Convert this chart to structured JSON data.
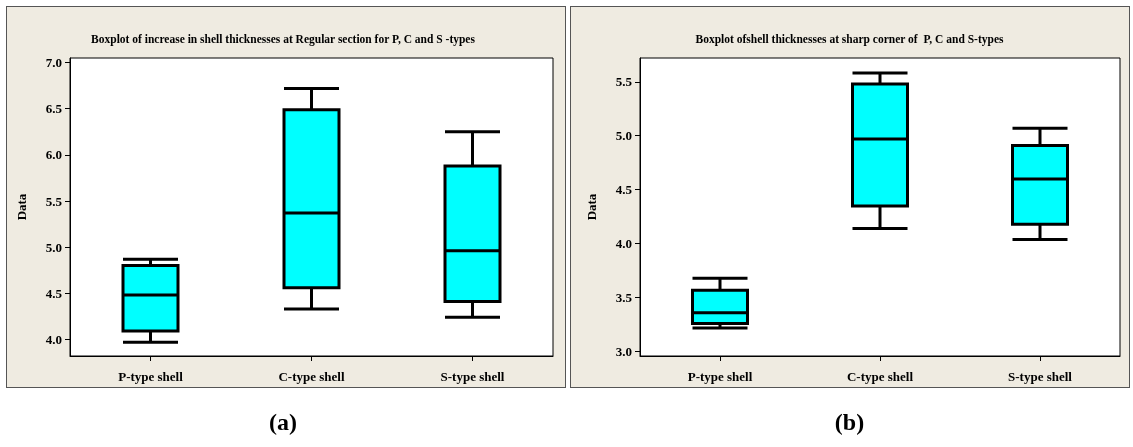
{
  "chart_data": [
    {
      "type": "box",
      "title": "Boxplot of increase in shell thicknesses at Regular section for P, C and S -types",
      "ylabel": "Data",
      "categories": [
        "P-type shell",
        "C-type shell",
        "S-type shell"
      ],
      "ylim": [
        3.82,
        7.05
      ],
      "yticks": [
        {
          "value": 4,
          "label": "4.0"
        },
        4.5,
        {
          "value": 5,
          "label": "5.0"
        },
        5.5,
        {
          "value": 6,
          "label": "6.0"
        },
        6.5,
        {
          "value": 7,
          "label": "7.0"
        }
      ],
      "annotations": [
        "(a)"
      ],
      "series": [
        {
          "color": "#00ffff",
          "boxes": [
            {
              "low": 3.97,
              "q1": 4.09,
              "median": 4.48,
              "q3": 4.8,
              "high": 4.87
            },
            {
              "low": 4.33,
              "q1": 4.56,
              "median": 5.37,
              "q3": 6.49,
              "high": 6.72
            },
            {
              "low": 4.24,
              "q1": 4.41,
              "median": 4.96,
              "q3": 5.88,
              "high": 6.25
            }
          ]
        }
      ]
    },
    {
      "type": "box",
      "title": "Boxplot ofshell thicknesses at sharp corner of  P, C and S-types",
      "ylabel": "Data",
      "categories": [
        "P-type shell",
        "C-type shell",
        "S-type shell"
      ],
      "ylim": [
        2.96,
        5.72
      ],
      "yticks": [
        {
          "value": 3,
          "label": "3.0"
        },
        3.5,
        {
          "value": 4,
          "label": "4.0"
        },
        4.5,
        {
          "value": 5,
          "label": "5.0"
        },
        5.5
      ],
      "annotations": [
        "(b)"
      ],
      "series": [
        {
          "color": "#00ffff",
          "boxes": [
            {
              "low": 3.22,
              "q1": 3.26,
              "median": 3.36,
              "q3": 3.57,
              "high": 3.68
            },
            {
              "low": 4.14,
              "q1": 4.35,
              "median": 4.97,
              "q3": 5.48,
              "high": 5.58
            },
            {
              "low": 4.04,
              "q1": 4.18,
              "median": 4.6,
              "q3": 4.91,
              "high": 5.07
            }
          ]
        }
      ]
    }
  ]
}
